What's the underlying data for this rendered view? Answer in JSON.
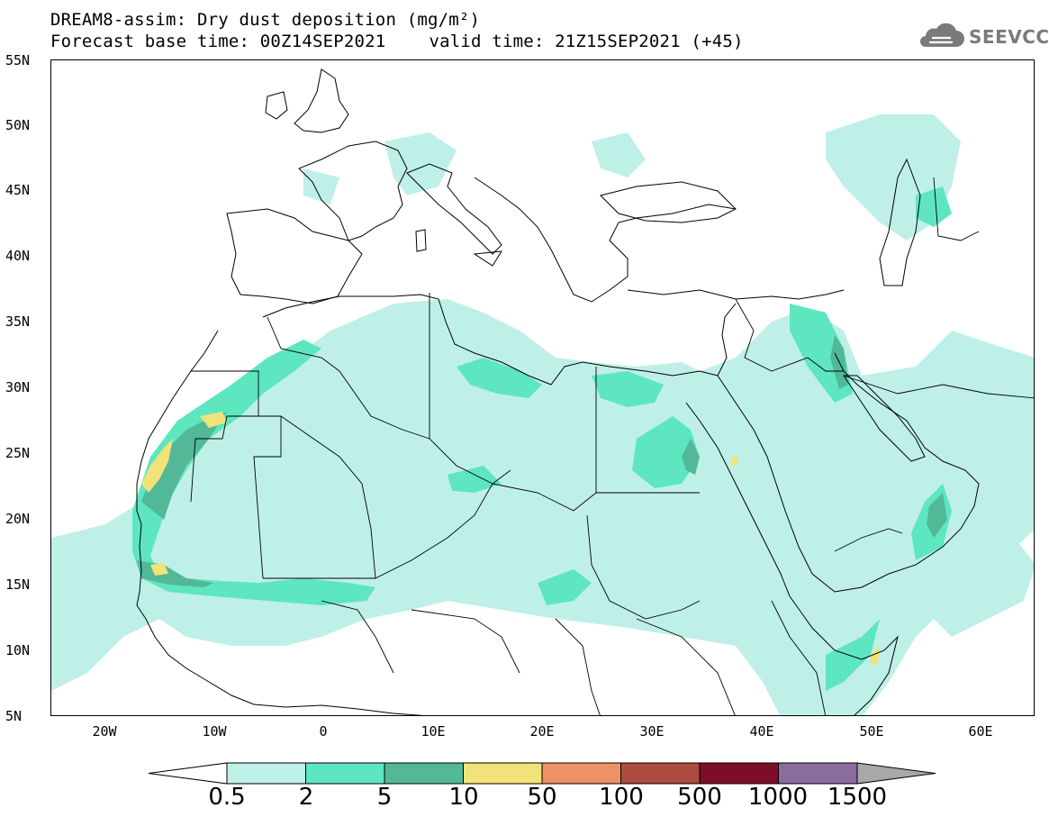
{
  "header": {
    "line1": "DREAM8-assim: Dry dust deposition (mg/m²)",
    "base_time": "Forecast base time: 00Z14SEP2021",
    "valid_time": "valid time: 21Z15SEP2021 (+45)"
  },
  "logo": {
    "text": "SEEVCCC",
    "icon": "cloud-icon"
  },
  "axes": {
    "lat_ticks": [
      "55N",
      "50N",
      "45N",
      "40N",
      "35N",
      "30N",
      "25N",
      "20N",
      "15N",
      "10N",
      "5N"
    ],
    "lon_ticks": [
      "20W",
      "10W",
      "0",
      "10E",
      "20E",
      "30E",
      "40E",
      "50E",
      "60E"
    ]
  },
  "colorbar": {
    "labels": [
      "0.5",
      "2",
      "5",
      "10",
      "50",
      "100",
      "500",
      "1000",
      "1500"
    ],
    "colors": [
      "#bff0e8",
      "#5ee6c0",
      "#52b898",
      "#f2e27a",
      "#ee9265",
      "#ad4c3e",
      "#7d0d2b",
      "#8a6d9e",
      "#a8a8a8"
    ]
  },
  "dust_colors": {
    "low": "#bff0e8",
    "mid": "#5ee6c0",
    "high": "#52b898",
    "peak": "#f2e27a"
  }
}
